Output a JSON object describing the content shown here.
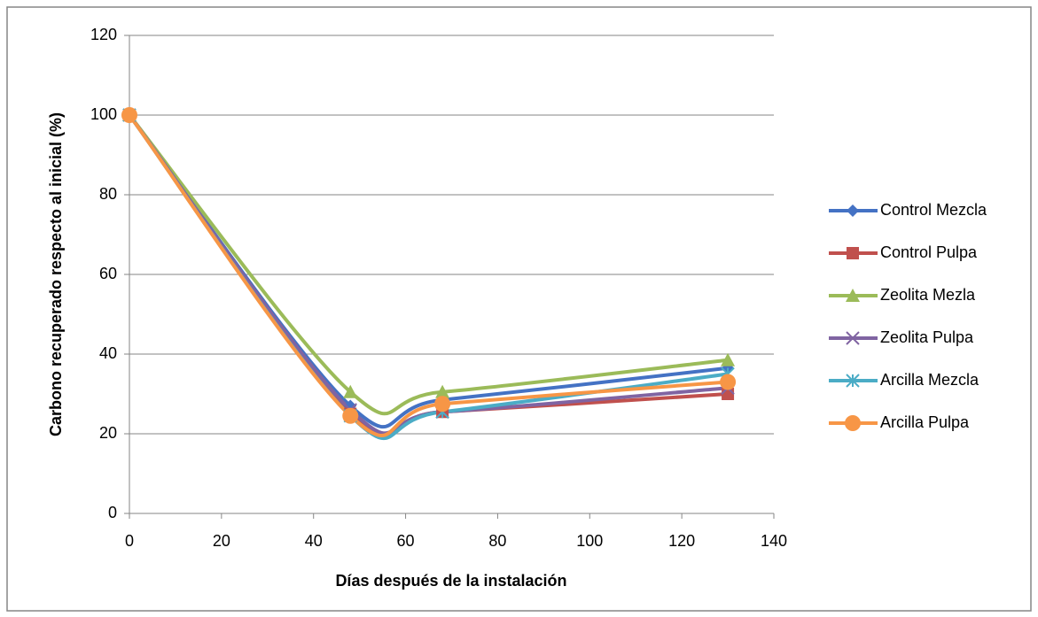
{
  "chart_data": {
    "type": "line",
    "x_label": "Días después de la instalación",
    "y_label": "Carbono recuperado respecto al inicial (%)",
    "x": [
      0,
      48,
      68,
      130
    ],
    "series": [
      {
        "name": "Control Mezcla",
        "color": "#4472c4",
        "marker": "diamond",
        "values": [
          100,
          27,
          28.5,
          36.5
        ]
      },
      {
        "name": "Control Pulpa",
        "color": "#c0504d",
        "marker": "square",
        "values": [
          100,
          25,
          25.5,
          30
        ]
      },
      {
        "name": "Zeolita Mezla",
        "color": "#9bbb59",
        "marker": "triangle",
        "values": [
          100,
          30.5,
          30.5,
          38.5
        ]
      },
      {
        "name": "Zeolita Pulpa",
        "color": "#8064a2",
        "marker": "x",
        "values": [
          100,
          26,
          25.5,
          31.5
        ]
      },
      {
        "name": "Arcilla Mezcla",
        "color": "#4bacc6",
        "marker": "star",
        "values": [
          100,
          24.5,
          25.5,
          35
        ]
      },
      {
        "name": "Arcilla Pulpa",
        "color": "#f79646",
        "marker": "circle",
        "values": [
          100,
          24.5,
          27.5,
          33
        ]
      }
    ],
    "smooth": true,
    "xlim": [
      0,
      140
    ],
    "xticks": [
      0,
      20,
      40,
      60,
      80,
      100,
      120,
      140
    ],
    "ylim": [
      0,
      120
    ],
    "yticks": [
      0,
      20,
      40,
      60,
      80,
      100,
      120
    ],
    "grid": true,
    "legend": "right"
  }
}
